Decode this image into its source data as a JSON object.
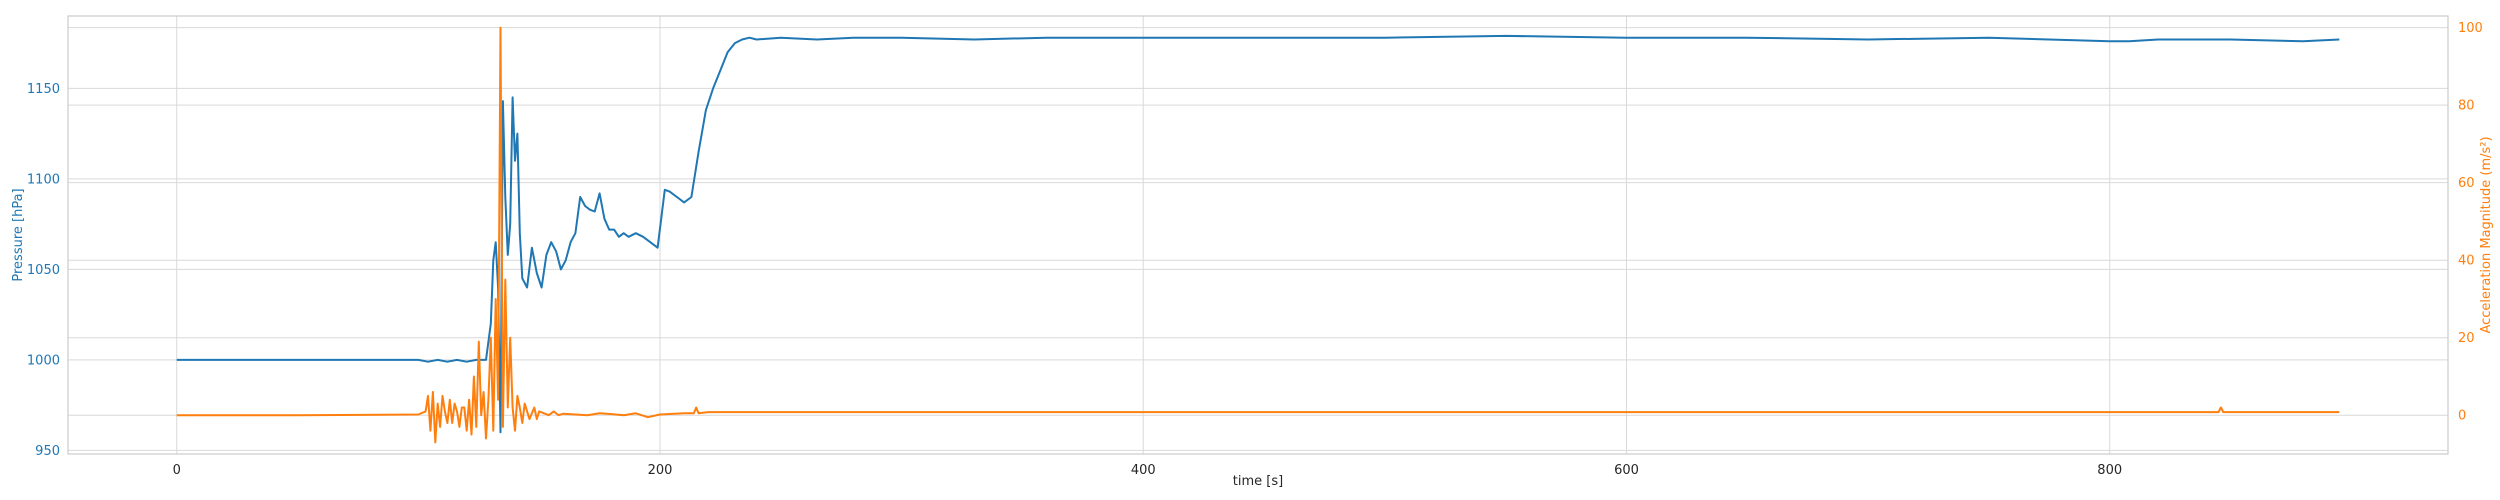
{
  "chart_data": {
    "type": "line",
    "title": "",
    "xlabel": "time [s]",
    "ylabel_left": "Pressure [hPa]",
    "ylabel_right": "Acceleration Magnitude (m/s²)",
    "xlim": [
      -45,
      940
    ],
    "ylim_left": [
      948,
      1190
    ],
    "ylim_right": [
      -10,
      103
    ],
    "x_ticks": [
      0,
      200,
      400,
      600,
      800
    ],
    "y_ticks_left": [
      950,
      1000,
      1050,
      1100,
      1150
    ],
    "y_ticks_right": [
      0,
      20,
      40,
      60,
      80,
      100
    ],
    "grid": true,
    "colors": {
      "pressure": "#1f77b4",
      "acceleration": "#ff7f0e"
    },
    "series": [
      {
        "name": "Pressure [hPa]",
        "axis": "left",
        "x": [
          0,
          50,
          100,
          104,
          108,
          112,
          116,
          120,
          124,
          128,
          130,
          131,
          132,
          133,
          134,
          135,
          136,
          137,
          138,
          139,
          140,
          141,
          142,
          143,
          145,
          147,
          149,
          151,
          153,
          155,
          157,
          159,
          161,
          163,
          165,
          167,
          169,
          171,
          173,
          175,
          177,
          179,
          181,
          183,
          185,
          187,
          190,
          193,
          196,
          199,
          202,
          204,
          207,
          210,
          213,
          216,
          219,
          222,
          225,
          228,
          231,
          234,
          237,
          240,
          250,
          265,
          280,
          300,
          330,
          360,
          400,
          450,
          500,
          550,
          600,
          650,
          700,
          750,
          800,
          808,
          820,
          850,
          880,
          895
        ],
        "values": [
          1000,
          1000,
          1000,
          999,
          1000,
          999,
          1000,
          999,
          1000,
          1000,
          1020,
          1055,
          1065,
          1040,
          960,
          1143,
          1090,
          1058,
          1075,
          1145,
          1110,
          1125,
          1070,
          1045,
          1040,
          1062,
          1048,
          1040,
          1058,
          1065,
          1060,
          1050,
          1055,
          1065,
          1070,
          1090,
          1085,
          1083,
          1082,
          1092,
          1078,
          1072,
          1072,
          1068,
          1070,
          1068,
          1070,
          1068,
          1065,
          1062,
          1094,
          1093,
          1090,
          1087,
          1090,
          1115,
          1138,
          1150,
          1160,
          1170,
          1175,
          1177,
          1178,
          1177,
          1178,
          1177,
          1178,
          1178,
          1177,
          1178,
          1178,
          1178,
          1178,
          1179,
          1178,
          1178,
          1177,
          1178,
          1176,
          1176,
          1177,
          1177,
          1176,
          1177
        ]
      },
      {
        "name": "Acceleration Magnitude (m/s²)",
        "axis": "right",
        "x": [
          0,
          50,
          100,
          103,
          104,
          105,
          106,
          107,
          108,
          109,
          110,
          111,
          112,
          113,
          114,
          115,
          116,
          117,
          118,
          119,
          120,
          121,
          122,
          123,
          124,
          125,
          126,
          127,
          128,
          129,
          130,
          131,
          132,
          133,
          134,
          135,
          136,
          137,
          138,
          139,
          140,
          141,
          142,
          143,
          144,
          145,
          146,
          147,
          148,
          149,
          150,
          152,
          154,
          156,
          158,
          160,
          165,
          170,
          175,
          180,
          185,
          190,
          195,
          200,
          210,
          214,
          215,
          216,
          220,
          250,
          300,
          350,
          400,
          500,
          600,
          700,
          800,
          845,
          846,
          847,
          860,
          895
        ],
        "values": [
          0,
          0,
          0.2,
          1,
          5,
          -4,
          6,
          -7,
          3,
          -3,
          5,
          1,
          -2,
          4,
          -2,
          3,
          1,
          -3,
          2,
          2,
          -4,
          4,
          -5,
          10,
          -3,
          19,
          0,
          6,
          -6,
          4,
          20,
          -4,
          30,
          4,
          100,
          -3,
          35,
          2,
          20,
          2,
          -4,
          5,
          2,
          -2,
          3,
          1,
          -1,
          0.5,
          2,
          -1,
          1,
          0.5,
          0,
          1,
          0,
          0.4,
          0.2,
          0,
          0.5,
          0.3,
          0,
          0.5,
          -0.5,
          0.2,
          0.5,
          0.5,
          2,
          0.5,
          0.8,
          0.8,
          0.8,
          0.8,
          0.8,
          0.8,
          0.8,
          0.8,
          0.8,
          0.8,
          2,
          0.8,
          0.8,
          0.8
        ]
      }
    ]
  }
}
